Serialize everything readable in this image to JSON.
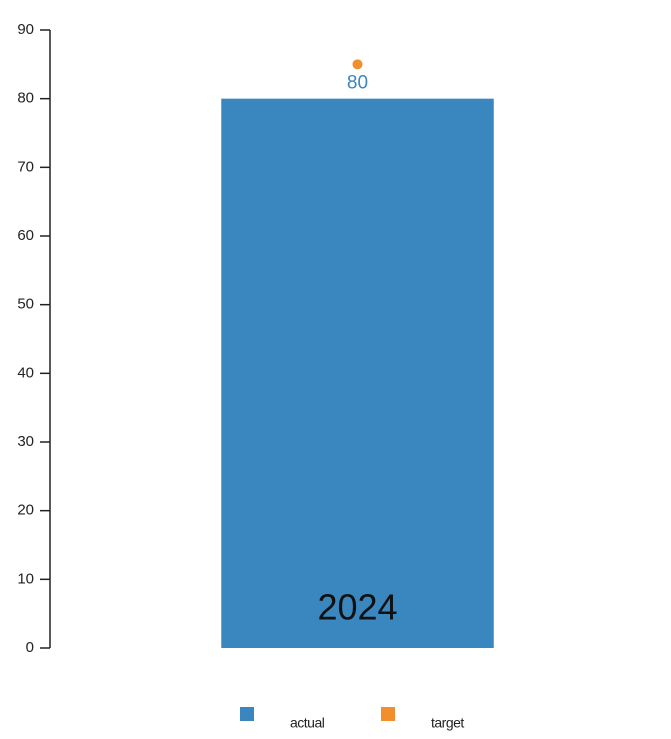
{
  "chart_data": {
    "type": "bar",
    "categories": [
      "2024"
    ],
    "series": [
      {
        "name": "actual",
        "color": "#3a86bf",
        "mark": "bar",
        "values": [
          80
        ]
      },
      {
        "name": "target",
        "color": "#f28e2b",
        "mark": "dot",
        "values": [
          85
        ]
      }
    ],
    "ylim": [
      0,
      90
    ],
    "yticks": [
      0,
      10,
      20,
      30,
      40,
      50,
      60,
      70,
      80,
      90
    ],
    "value_labels_series": 0
  }
}
